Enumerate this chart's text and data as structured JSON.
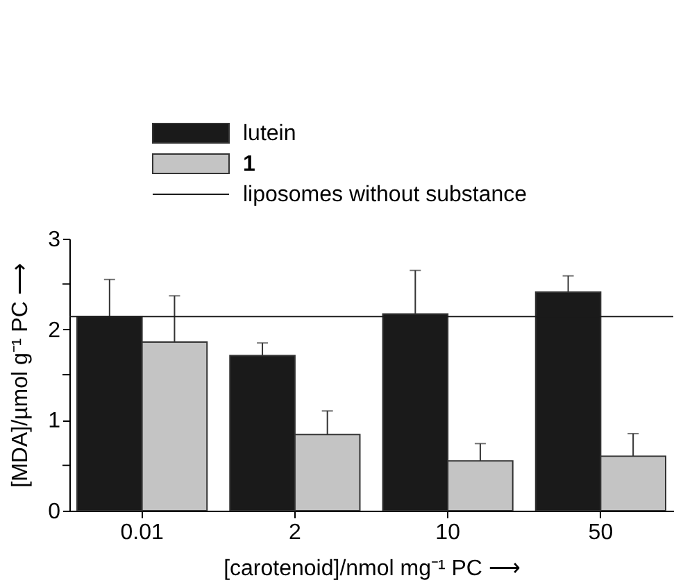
{
  "chart_data": {
    "type": "bar",
    "categories": [
      "0.01",
      "2",
      "10",
      "50"
    ],
    "xlabel": "[carotenoid]/nmol mg⁻¹ PC ⟶",
    "ylabel": "[MDA]/µmol g⁻¹ PC ⟶",
    "series": [
      {
        "name": "lutein",
        "color": "#1a1a1a",
        "values": [
          2.14,
          1.71,
          2.17,
          2.41
        ],
        "errors": [
          [
            2.14,
            2.55
          ],
          [
            1.71,
            1.85
          ],
          [
            2.17,
            2.65
          ],
          [
            2.41,
            2.59
          ]
        ]
      },
      {
        "name": "1",
        "color": "#c4c4c4",
        "values": [
          1.86,
          0.84,
          0.55,
          0.6
        ],
        "errors": [
          [
            1.86,
            2.37
          ],
          [
            0.84,
            1.1
          ],
          [
            0.55,
            0.74
          ],
          [
            0.6,
            0.85
          ]
        ]
      }
    ],
    "ref_lines": [
      {
        "axis": "y",
        "value": 2.14,
        "label": "liposomes without substance",
        "color": "#1a1a1a"
      }
    ],
    "ylim": [
      0,
      3
    ],
    "yticks": [
      0,
      {
        "value": 0.5,
        "label": null
      },
      1,
      {
        "value": 1.5,
        "label": null
      },
      2,
      {
        "value": 2.5,
        "label": null
      },
      3
    ],
    "grid": false,
    "legend": "top"
  }
}
